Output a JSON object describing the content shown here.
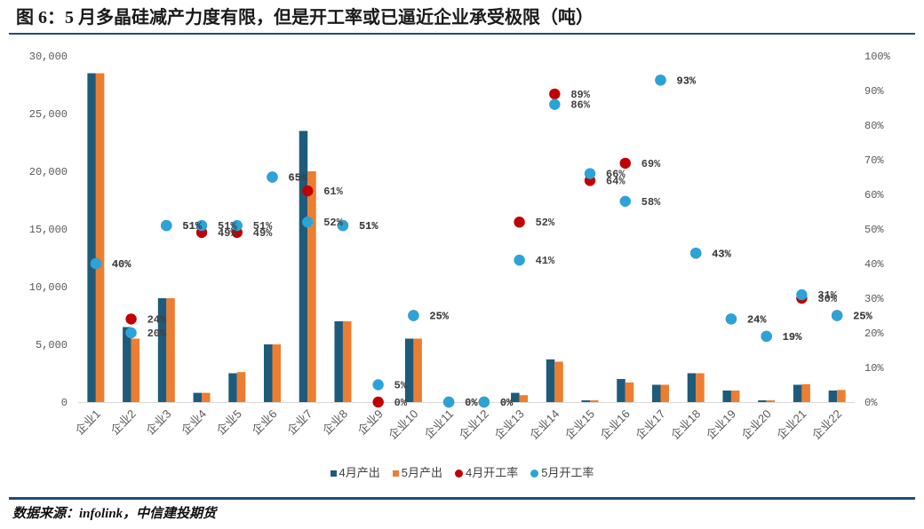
{
  "footer": {
    "source": "数据来源：infolink，中信建投期货"
  },
  "theme_colors": {
    "rule": "#1f4e79"
  },
  "chart_data": {
    "type": "bar",
    "title": "图 6：5 月多晶硅减产力度有限，但是开工率或已逼近企业承受极限（吨）",
    "xlabel": "",
    "ylabel": "",
    "grid": false,
    "legend": {
      "position": "bottom"
    },
    "categories": [
      "企业1",
      "企业2",
      "企业3",
      "企业4",
      "企业5",
      "企业6",
      "企业7",
      "企业8",
      "企业9",
      "企业10",
      "企业11",
      "企业12",
      "企业13",
      "企业14",
      "企业15",
      "企业16",
      "企业17",
      "企业18",
      "企业19",
      "企业20",
      "企业21",
      "企业22"
    ],
    "series": [
      {
        "name": "4月产出",
        "type": "bar",
        "axis": "left",
        "color": "#1e5b7a",
        "values": [
          28500,
          6500,
          9000,
          800,
          2500,
          5000,
          23500,
          7000,
          0,
          5500,
          0,
          0,
          800,
          3700,
          150,
          2000,
          1500,
          2500,
          1000,
          150,
          1500,
          1000
        ]
      },
      {
        "name": "5月产出",
        "type": "bar",
        "axis": "left",
        "color": "#ed7d31",
        "values": [
          28500,
          5500,
          9000,
          800,
          2600,
          5000,
          20000,
          7000,
          0,
          5500,
          0,
          0,
          600,
          3500,
          150,
          1700,
          1500,
          2500,
          1000,
          150,
          1550,
          1050
        ]
      },
      {
        "name": "4月开工率",
        "type": "scatter",
        "axis": "right",
        "color": "#c00000",
        "values": [
          40,
          24,
          51,
          49,
          49,
          65,
          61,
          51,
          0,
          25,
          0,
          0,
          52,
          89,
          64,
          69,
          93,
          43,
          24,
          19,
          30,
          25
        ],
        "data_labels": [
          "40%",
          "24%",
          "51%",
          "49%",
          "49%",
          "65%",
          "61%",
          "51%",
          "0%",
          "25%",
          "0%",
          "0%",
          "52%",
          "89%",
          "64%",
          "69%",
          "93%",
          "43%",
          "24%",
          "19%",
          "30%",
          "25%"
        ]
      },
      {
        "name": "5月开工率",
        "type": "scatter",
        "axis": "right",
        "color": "#2aa4d8",
        "values": [
          40,
          20,
          51,
          51,
          51,
          65,
          52,
          51,
          5,
          25,
          0,
          0,
          41,
          86,
          66,
          58,
          93,
          43,
          24,
          19,
          31,
          25
        ],
        "data_labels": [
          "40%",
          "20%",
          "51%",
          "51%",
          "51%",
          "65%",
          "52%",
          "51%",
          "5%",
          "25%",
          "0%",
          "0%",
          "41%",
          "86%",
          "66%",
          "58%",
          "93%",
          "43%",
          "24%",
          "19%",
          "31%",
          "25%"
        ]
      }
    ],
    "y_left": {
      "range": [
        0,
        30000
      ],
      "ticks": [
        {
          "value": 0,
          "label": "0"
        },
        {
          "value": 5000,
          "label": "5,000"
        },
        {
          "value": 10000,
          "label": "10,000"
        },
        {
          "value": 15000,
          "label": "15,000"
        },
        {
          "value": 20000,
          "label": "20,000"
        },
        {
          "value": 25000,
          "label": "25,000"
        },
        {
          "value": 30000,
          "label": "30,000"
        }
      ]
    },
    "y_right": {
      "range": [
        0,
        100
      ],
      "ticks": [
        {
          "value": 0,
          "label": "0%"
        },
        {
          "value": 10,
          "label": "10%"
        },
        {
          "value": 20,
          "label": "20%"
        },
        {
          "value": 30,
          "label": "30%"
        },
        {
          "value": 40,
          "label": "40%"
        },
        {
          "value": 50,
          "label": "50%"
        },
        {
          "value": 60,
          "label": "60%"
        },
        {
          "value": 70,
          "label": "70%"
        },
        {
          "value": 80,
          "label": "80%"
        },
        {
          "value": 90,
          "label": "90%"
        },
        {
          "value": 100,
          "label": "100%"
        }
      ]
    }
  }
}
